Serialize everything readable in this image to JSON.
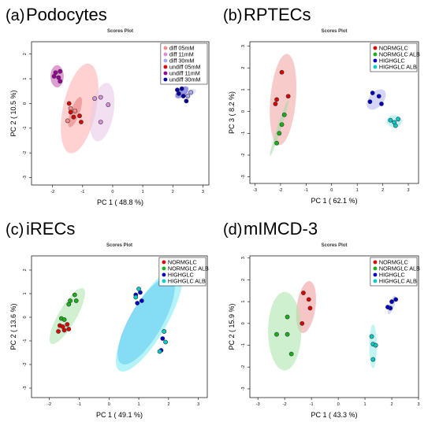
{
  "chart_data": [
    {
      "type": "scatter",
      "panel_label": "(a)",
      "panel_name": "Podocytes",
      "title": "Scores Plot",
      "xlabel": "PC 1 ( 48.8 %)",
      "ylabel": "PC 2 ( 10.5 %)",
      "xlim": [
        -2.7,
        3.2
      ],
      "ylim": [
        -3.3,
        2.5
      ],
      "xticks": [
        -2,
        -1,
        0,
        1,
        2,
        3
      ],
      "yticks": [
        -3,
        -2,
        -1,
        0,
        1,
        2
      ],
      "grid": false,
      "legend_position": "top-right",
      "series": [
        {
          "name": "diff 05mM",
          "color": "#ff8a8a",
          "ellipse_fill": "#ffb3b3",
          "points": [
            [
              -1.4,
              -0.2
            ],
            [
              -1.5,
              -0.7
            ],
            [
              -1.25,
              -0.3
            ]
          ],
          "ellipse": {
            "cx": -1.1,
            "cy": -0.2,
            "rx": 0.55,
            "ry": 1.85,
            "angle": 12
          }
        },
        {
          "name": "diff 11mM",
          "color": "#d98fd9",
          "ellipse_fill": "#eac9ea",
          "points": [
            [
              -0.15,
              -0.05
            ],
            [
              -0.4,
              -0.75
            ],
            [
              -0.6,
              0.2
            ],
            [
              -0.4,
              0.25
            ]
          ],
          "ellipse": {
            "cx": -0.35,
            "cy": -0.35,
            "rx": 0.38,
            "ry": 1.2,
            "angle": 10
          }
        },
        {
          "name": "diff 30mM",
          "color": "#aaaaee",
          "ellipse_fill": "#c8c8f0",
          "points": [
            [
              2.6,
              0.45
            ],
            [
              2.5,
              0.3
            ]
          ],
          "ellipse": {
            "cx": 2.55,
            "cy": 0.4,
            "rx": 0.1,
            "ry": 0.3,
            "angle": 60
          }
        },
        {
          "name": "undiff 05mM",
          "color": "#e00000",
          "ellipse_fill": "#e88080",
          "points": [
            [
              -1.4,
              -0.35
            ],
            [
              -1.3,
              -0.55
            ],
            [
              -1.1,
              -0.5
            ],
            [
              -1.05,
              -0.75
            ],
            [
              -1.45,
              0.0
            ]
          ],
          "ellipse": {
            "cx": -1.25,
            "cy": -0.35,
            "rx": 0.15,
            "ry": 0.65,
            "angle": 20
          }
        },
        {
          "name": "undiff 11mM",
          "color": "#990099",
          "ellipse_fill": "#c860b8",
          "points": [
            [
              -1.95,
              1.1
            ],
            [
              -1.75,
              0.9
            ],
            [
              -1.9,
              1.25
            ],
            [
              -1.75,
              1.3
            ],
            [
              -1.8,
              1.05
            ]
          ],
          "ellipse": {
            "cx": -1.85,
            "cy": 1.1,
            "rx": 0.22,
            "ry": 0.45,
            "angle": 0
          }
        },
        {
          "name": "undiff 30mM",
          "color": "#0000aa",
          "ellipse_fill": "#5050d8",
          "points": [
            [
              2.15,
              0.55
            ],
            [
              2.3,
              0.6
            ],
            [
              2.35,
              0.3
            ],
            [
              2.2,
              0.4
            ],
            [
              2.45,
              0.1
            ]
          ],
          "ellipse": {
            "cx": 2.3,
            "cy": 0.45,
            "rx": 0.14,
            "ry": 0.32,
            "angle": 50
          }
        }
      ]
    },
    {
      "type": "scatter",
      "panel_label": "(b)",
      "panel_name": "RPTECs",
      "title": "Scores Plot",
      "xlabel": "PC 1 ( 62.1 %)",
      "ylabel": "PC 3 ( 8.2 %)",
      "xlim": [
        -3.2,
        3.4
      ],
      "ylim": [
        -3.3,
        3.2
      ],
      "xticks": [
        -3,
        -2,
        -1,
        0,
        1,
        2,
        3
      ],
      "yticks": [
        -3,
        -2,
        -1,
        0,
        1,
        2,
        3
      ],
      "grid": false,
      "legend_position": "top-right",
      "series": [
        {
          "name": "NORMGLC",
          "color": "#e00000",
          "ellipse_fill": "#f4a9a9",
          "points": [
            [
              -1.95,
              1.8
            ],
            [
              -2.15,
              0.55
            ],
            [
              -1.7,
              0.7
            ],
            [
              -2.2,
              0.35
            ]
          ],
          "ellipse": {
            "cx": -1.9,
            "cy": 0.55,
            "rx": 0.5,
            "ry": 2.1,
            "angle": 5
          }
        },
        {
          "name": "NORMGLC ALB",
          "color": "#19b119",
          "ellipse_fill": "#a6dca6",
          "points": [
            [
              -1.85,
              -0.15
            ],
            [
              -2.05,
              -1.0
            ],
            [
              -2.15,
              -1.45
            ],
            [
              -1.95,
              -0.6
            ]
          ],
          "ellipse": {
            "cx": -2.05,
            "cy": -0.75,
            "rx": 0.08,
            "ry": 1.35,
            "angle": 18
          }
        },
        {
          "name": "HIGHGLC",
          "color": "#0000cc",
          "ellipse_fill": "#b9b9ee",
          "points": [
            [
              1.6,
              0.85
            ],
            [
              1.5,
              0.45
            ],
            [
              1.85,
              0.7
            ],
            [
              1.95,
              0.35
            ]
          ],
          "ellipse": {
            "cx": 1.75,
            "cy": 0.55,
            "rx": 0.28,
            "ry": 0.55,
            "angle": 40
          }
        },
        {
          "name": "HIGHGLC ALB",
          "color": "#00cccc",
          "ellipse_fill": "#99ecec",
          "points": [
            [
              2.3,
              -0.4
            ],
            [
              2.6,
              -0.35
            ],
            [
              2.45,
              -0.5
            ],
            [
              2.5,
              -0.65
            ]
          ],
          "ellipse": {
            "cx": 2.45,
            "cy": -0.45,
            "rx": 0.3,
            "ry": 0.28,
            "angle": 0
          }
        }
      ]
    },
    {
      "type": "scatter",
      "panel_label": "(c)",
      "panel_name": "iRECs",
      "title": "Scores Plot",
      "xlabel": "PC 1 ( 49.1 %)",
      "ylabel": "PC 2 ( 13.6 %)",
      "xlim": [
        -2.6,
        3.3
      ],
      "ylim": [
        -3.4,
        2.6
      ],
      "xticks": [
        -2,
        -1,
        0,
        1,
        2,
        3
      ],
      "yticks": [
        -3,
        -2,
        -1,
        0,
        1,
        2
      ],
      "grid": false,
      "legend_position": "top-right",
      "series": [
        {
          "name": "NORMGLC",
          "color": "#e00000",
          "ellipse_fill": "#f0a0a0",
          "points": [
            [
              -1.65,
              -0.35
            ],
            [
              -1.5,
              -0.55
            ],
            [
              -1.55,
              -0.4
            ],
            [
              -1.4,
              -0.3
            ],
            [
              -1.35,
              -0.5
            ],
            [
              -1.7,
              -0.6
            ]
          ],
          "ellipse": {
            "cx": -1.55,
            "cy": -0.45,
            "rx": 0.12,
            "ry": 0.28,
            "angle": 70
          }
        },
        {
          "name": "NORMGLC ALB",
          "color": "#19b119",
          "ellipse_fill": "#b0e6b0",
          "points": [
            [
              -1.35,
              0.55
            ],
            [
              -1.15,
              0.95
            ],
            [
              -1.1,
              0.7
            ],
            [
              -1.3,
              0.7
            ],
            [
              -1.6,
              -0.05
            ],
            [
              -1.5,
              -0.1
            ]
          ],
          "ellipse": {
            "cx": -1.4,
            "cy": 0.05,
            "rx": 0.3,
            "ry": 1.35,
            "angle": 30
          }
        },
        {
          "name": "HIGHGLC",
          "color": "#0000cc",
          "ellipse_fill": "#3d9ff0",
          "points": [
            [
              0.9,
              0.95
            ],
            [
              1.05,
              1.05
            ],
            [
              1.1,
              0.7
            ],
            [
              0.95,
              0.6
            ],
            [
              1.85,
              -0.6
            ],
            [
              1.75,
              -1.4
            ],
            [
              1.8,
              -0.9
            ]
          ],
          "ellipse": {
            "cx": 1.25,
            "cy": -0.15,
            "rx": 0.55,
            "ry": 2.1,
            "angle": 30
          }
        },
        {
          "name": "HIGHGLC ALB",
          "color": "#00cccc",
          "ellipse_fill": "#80ecf4",
          "points": [
            [
              1.0,
              1.2
            ],
            [
              0.9,
              0.85
            ],
            [
              1.85,
              -0.6
            ],
            [
              1.7,
              -1.45
            ],
            [
              1.9,
              -1.05
            ]
          ],
          "ellipse": {
            "cx": 1.35,
            "cy": -0.1,
            "rx": 0.6,
            "ry": 2.5,
            "angle": 30
          }
        }
      ]
    },
    {
      "type": "scatter",
      "panel_label": "(d)",
      "panel_name": "mIMCD-3",
      "title": "Scores Plot",
      "xlabel": "PC 1 ( 43.3 %)",
      "ylabel": "PC 2 ( 15.9 %)",
      "xlim": [
        -3.3,
        3.0
      ],
      "ylim": [
        -3.4,
        3.1
      ],
      "xticks": [
        -3,
        -2,
        -1,
        0,
        1,
        2,
        3
      ],
      "yticks": [
        -3,
        -2,
        -1,
        0,
        1,
        2,
        3
      ],
      "grid": false,
      "legend_position": "top-right",
      "series": [
        {
          "name": "NORMGLC",
          "color": "#e00000",
          "ellipse_fill": "#f0a0a0",
          "points": [
            [
              -1.3,
              1.4
            ],
            [
              -1.1,
              1.1
            ],
            [
              -1.05,
              0.7
            ],
            [
              -1.35,
              0.0
            ]
          ],
          "ellipse": {
            "cx": -1.2,
            "cy": 0.75,
            "rx": 0.35,
            "ry": 1.2,
            "angle": 8
          }
        },
        {
          "name": "NORMGLC ALB",
          "color": "#19b119",
          "ellipse_fill": "#aee6ae",
          "points": [
            [
              -2.3,
              -0.5
            ],
            [
              -1.9,
              -0.5
            ],
            [
              -1.75,
              -1.4
            ],
            [
              -1.9,
              0.3
            ]
          ],
          "ellipse": {
            "cx": -2.0,
            "cy": -0.35,
            "rx": 0.62,
            "ry": 1.8,
            "angle": 0
          }
        },
        {
          "name": "HIGHGLC",
          "color": "#0000cc",
          "ellipse_fill": "#bdbdf0",
          "points": [
            [
              1.95,
              0.7
            ],
            [
              2.15,
              1.1
            ],
            [
              2.0,
              1.0
            ],
            [
              1.85,
              0.75
            ]
          ],
          "ellipse": {
            "cx": 2.0,
            "cy": 0.85,
            "rx": 0.1,
            "ry": 0.45,
            "angle": 20
          }
        },
        {
          "name": "HIGHGLC ALB",
          "color": "#00cccc",
          "ellipse_fill": "#99ecec",
          "points": [
            [
              1.25,
              -0.6
            ],
            [
              1.3,
              -0.95
            ],
            [
              1.4,
              -1.0
            ],
            [
              1.3,
              -1.65
            ]
          ],
          "ellipse": {
            "cx": 1.3,
            "cy": -1.05,
            "rx": 0.14,
            "ry": 1.0,
            "angle": 0
          }
        }
      ]
    }
  ]
}
